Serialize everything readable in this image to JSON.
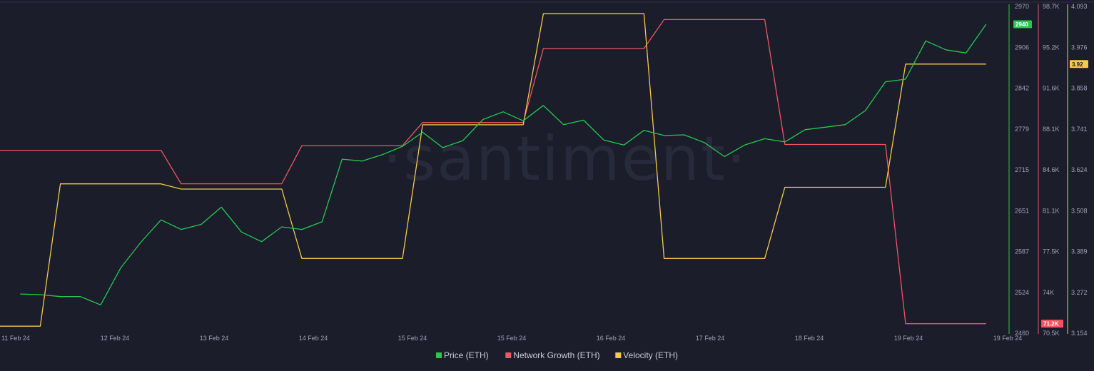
{
  "watermark": "·santiment·",
  "chart_data": {
    "type": "line",
    "x_ticks": [
      "11 Feb 24",
      "12 Feb 24",
      "13 Feb 24",
      "14 Feb 24",
      "15 Feb 24",
      "15 Feb 24",
      "16 Feb 24",
      "17 Feb 24",
      "18 Feb 24",
      "19 Feb 24",
      "19 Feb 24"
    ],
    "x_range": [
      0,
      100
    ],
    "series": [
      {
        "name": "Price (ETH)",
        "color": "#26c94f",
        "axis": "price",
        "x": [
          2,
          4,
          6,
          8,
          10,
          12,
          14,
          16,
          18,
          20,
          22,
          24,
          26,
          28,
          30,
          32,
          34,
          36,
          38,
          40,
          42,
          44,
          46,
          48,
          50,
          52,
          54,
          56,
          58,
          60,
          62,
          64,
          66,
          68,
          70,
          72,
          74,
          76,
          78,
          80,
          82,
          84,
          86,
          88,
          90,
          92,
          94,
          96,
          98
        ],
        "values": [
          2519,
          2518,
          2515,
          2515,
          2502,
          2560,
          2600,
          2635,
          2620,
          2628,
          2655,
          2616,
          2601,
          2624,
          2620,
          2632,
          2730,
          2727,
          2737,
          2750,
          2772,
          2748,
          2759,
          2792,
          2804,
          2790,
          2814,
          2784,
          2791,
          2760,
          2752,
          2775,
          2767,
          2768,
          2756,
          2734,
          2752,
          2762,
          2757,
          2776,
          2780,
          2784,
          2806,
          2851,
          2855,
          2915,
          2901,
          2896,
          2941
        ]
      },
      {
        "name": "Network Growth (ETH)",
        "color": "#f25460",
        "axis": "network",
        "x": [
          0,
          16,
          18,
          28,
          30,
          40,
          42,
          52,
          54,
          64,
          66,
          76,
          78,
          88,
          90,
          98
        ],
        "values": [
          86.2,
          86.2,
          83.3,
          83.3,
          86.6,
          86.6,
          88.6,
          88.6,
          95.0,
          95.0,
          97.5,
          97.5,
          86.7,
          86.7,
          71.2,
          71.2
        ]
      },
      {
        "name": "Velocity (ETH)",
        "color": "#f7c948",
        "axis": "velocity",
        "x": [
          0,
          4,
          6,
          16,
          18,
          28,
          30,
          40,
          42,
          52,
          54,
          64,
          66,
          76,
          78,
          88,
          90,
          98
        ],
        "values": [
          3.17,
          3.17,
          3.58,
          3.58,
          3.565,
          3.565,
          3.365,
          3.365,
          3.75,
          3.75,
          4.07,
          4.07,
          3.365,
          3.365,
          3.57,
          3.57,
          3.925,
          3.925
        ]
      }
    ],
    "axes": {
      "price": {
        "ticks": [
          "2970",
          "2906",
          "2842",
          "2779",
          "2715",
          "2651",
          "2587",
          "2524",
          "2460"
        ],
        "range": [
          2460,
          2970
        ],
        "current": "2940",
        "color": "#26c94f"
      },
      "network": {
        "ticks": [
          "98.7K",
          "95.2K",
          "91.6K",
          "88.1K",
          "84.6K",
          "81.1K",
          "77.5K",
          "74K",
          "70.5K"
        ],
        "range": [
          70.5,
          98.7
        ],
        "current": "71.2K",
        "color": "#f25460"
      },
      "velocity": {
        "ticks": [
          "4.093",
          "3.976",
          "3.858",
          "3.741",
          "3.624",
          "3.508",
          "3.389",
          "3.272",
          "3.154"
        ],
        "range": [
          3.154,
          4.093
        ],
        "current": "3.92",
        "color": "#f7c948"
      }
    },
    "legend": {
      "position": "bottom-center"
    },
    "grid": false
  }
}
